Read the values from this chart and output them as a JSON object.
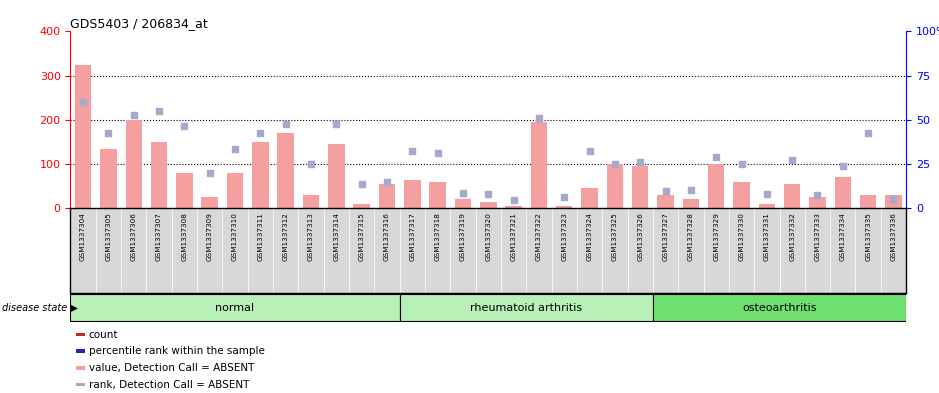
{
  "title": "GDS5403 / 206834_at",
  "samples": [
    "GSM1337304",
    "GSM1337305",
    "GSM1337306",
    "GSM1337307",
    "GSM1337308",
    "GSM1337309",
    "GSM1337310",
    "GSM1337311",
    "GSM1337312",
    "GSM1337313",
    "GSM1337314",
    "GSM1337315",
    "GSM1337316",
    "GSM1337317",
    "GSM1337318",
    "GSM1337319",
    "GSM1337320",
    "GSM1337321",
    "GSM1337322",
    "GSM1337323",
    "GSM1337324",
    "GSM1337325",
    "GSM1337326",
    "GSM1337327",
    "GSM1337328",
    "GSM1337329",
    "GSM1337330",
    "GSM1337331",
    "GSM1337332",
    "GSM1337333",
    "GSM1337334",
    "GSM1337335",
    "GSM1337336"
  ],
  "bar_values": [
    325,
    135,
    200,
    150,
    80,
    25,
    80,
    150,
    170,
    30,
    145,
    10,
    55,
    65,
    60,
    20,
    15,
    5,
    195,
    5,
    45,
    100,
    95,
    30,
    20,
    100,
    60,
    10,
    55,
    25,
    70,
    30,
    30
  ],
  "dot_values": [
    240,
    170,
    210,
    220,
    185,
    80,
    135,
    170,
    190,
    100,
    190,
    55,
    60,
    130,
    125,
    35,
    32,
    18,
    205,
    25,
    130,
    100,
    105,
    38,
    42,
    115,
    100,
    33,
    110,
    30,
    95,
    170,
    22
  ],
  "bar_color": "#f4a0a0",
  "dot_color": "#a8a8cc",
  "ylim_left": [
    0,
    400
  ],
  "ylim_right": [
    0,
    100
  ],
  "yticks_left": [
    0,
    100,
    200,
    300,
    400
  ],
  "yticks_right": [
    0,
    25,
    50,
    75,
    100
  ],
  "grid_values": [
    100,
    200,
    300
  ],
  "group_boundaries": [
    0,
    13,
    23,
    33
  ],
  "group_labels": [
    "normal",
    "rheumatoid arthritis",
    "osteoarthritis"
  ],
  "group_colors": [
    "#b8f0b8",
    "#b8f0b8",
    "#70e070"
  ],
  "disease_state_label": "disease state",
  "tick_bg_color": "#d8d8d8",
  "chart_bg_color": "#ffffff",
  "legend_items": [
    {
      "label": "count",
      "color": "#cc2222"
    },
    {
      "label": "percentile rank within the sample",
      "color": "#2222cc"
    },
    {
      "label": "value, Detection Call = ABSENT",
      "color": "#f4a0a0"
    },
    {
      "label": "rank, Detection Call = ABSENT",
      "color": "#a8a8cc"
    }
  ]
}
